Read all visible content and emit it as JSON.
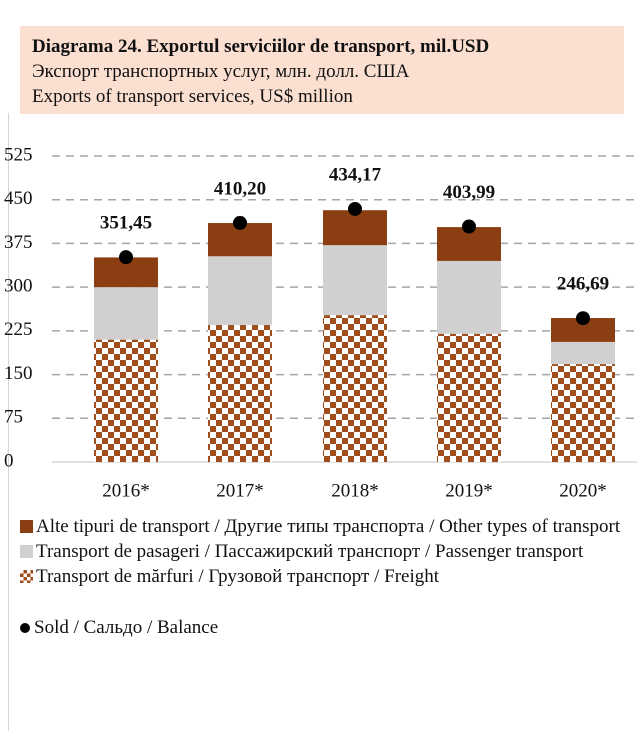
{
  "chart_data": {
    "type": "stacked-bar",
    "title": "Diagrama 24. Exportul serviciilor de transport, mil.USD",
    "subtitle": [
      "Экспорт транспортных услуг, млн. долл. США",
      "Exports of transport services, US$ million"
    ],
    "categories": [
      "2016*",
      "2017*",
      "2018*",
      "2019*",
      "2020*"
    ],
    "series": [
      {
        "name": "Transport de mărfuri / Грузовой транспорт / Freight",
        "color": "#a04d1c",
        "pattern": "checker",
        "values": [
          210,
          235,
          252,
          220,
          168
        ]
      },
      {
        "name": "Transport de pasageri / Пассажирский транспорт / Passenger transport",
        "color": "#d0d0d0",
        "values": [
          90,
          118,
          120,
          125,
          38
        ]
      },
      {
        "name": "Alte tipuri de transport / Другие типы транспорта / Other types of transport",
        "color": "#8b3e12",
        "values": [
          51,
          57,
          60,
          58,
          41
        ]
      }
    ],
    "balance": {
      "name": "Sold / Сальдо / Balance",
      "color": "#000000",
      "values": [
        351.45,
        410.2,
        434.17,
        403.99,
        246.69
      ],
      "value_labels": [
        "351,45",
        "410,20",
        "434,17",
        "403,99",
        "246,69"
      ]
    },
    "ylim": [
      0,
      525
    ],
    "yticks": [
      0,
      75,
      150,
      225,
      300,
      375,
      450,
      525
    ],
    "grid": true
  }
}
